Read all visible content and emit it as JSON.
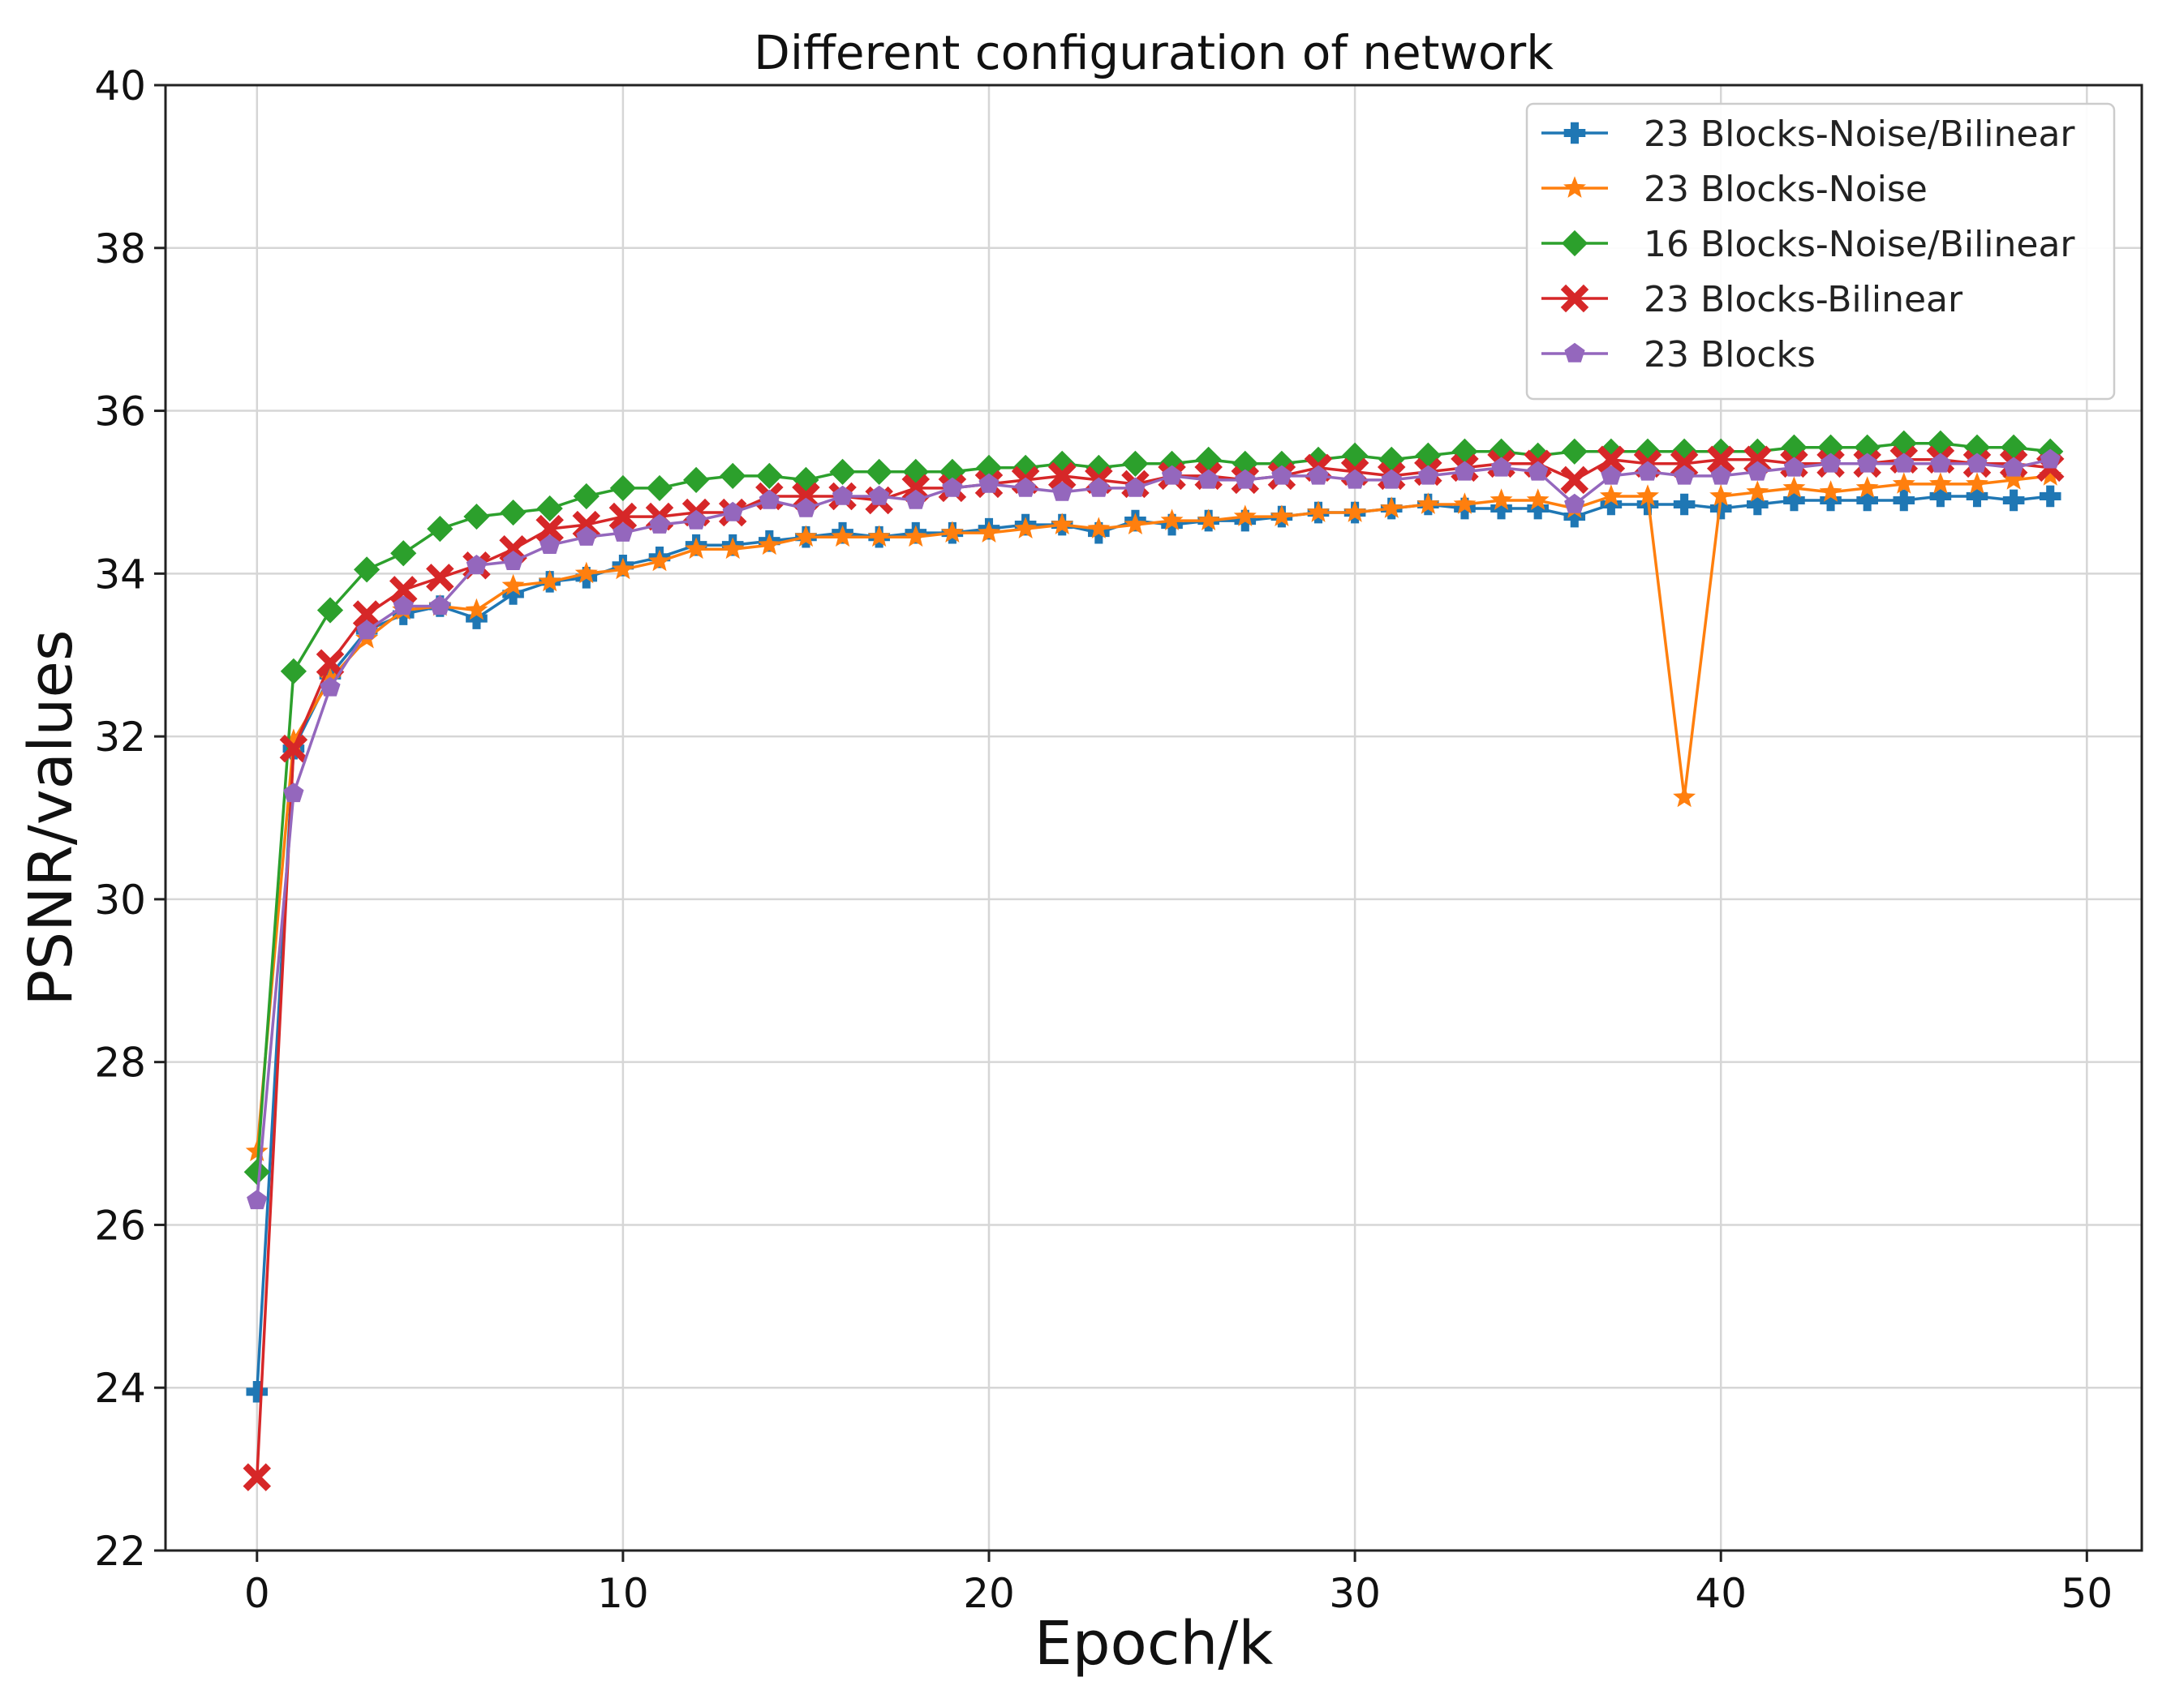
{
  "chart_data": {
    "type": "line",
    "title": "Different configuration of network",
    "xlabel": "Epoch/k",
    "ylabel": "PSNR/values",
    "xlim": [
      -2.5,
      51.5
    ],
    "ylim": [
      22,
      40
    ],
    "xticks": [
      0,
      10,
      20,
      30,
      40,
      50
    ],
    "yticks": [
      22,
      24,
      26,
      28,
      30,
      32,
      34,
      36,
      38,
      40
    ],
    "grid": true,
    "legend_position": "top-right",
    "x": [
      0,
      1,
      2,
      3,
      4,
      5,
      6,
      7,
      8,
      9,
      10,
      11,
      12,
      13,
      14,
      15,
      16,
      17,
      18,
      19,
      20,
      21,
      22,
      23,
      24,
      25,
      26,
      27,
      28,
      29,
      30,
      31,
      32,
      33,
      34,
      35,
      36,
      37,
      38,
      39,
      40,
      41,
      42,
      43,
      44,
      45,
      46,
      47,
      48,
      49
    ],
    "series": [
      {
        "name": "23 Blocks-Noise/Bilinear",
        "color": "#1f77b4",
        "marker": "plus",
        "values": [
          23.95,
          31.85,
          32.75,
          33.3,
          33.5,
          33.6,
          33.45,
          33.75,
          33.9,
          33.95,
          34.1,
          34.2,
          34.35,
          34.35,
          34.4,
          34.45,
          34.5,
          34.45,
          34.5,
          34.5,
          34.55,
          34.6,
          34.6,
          34.5,
          34.65,
          34.6,
          34.65,
          34.65,
          34.7,
          34.75,
          34.75,
          34.8,
          34.85,
          34.8,
          34.8,
          34.8,
          34.7,
          34.85,
          34.85,
          34.85,
          34.8,
          34.85,
          34.9,
          34.9,
          34.9,
          34.9,
          34.95,
          34.95,
          34.9,
          34.95
        ]
      },
      {
        "name": "23 Blocks-Noise",
        "color": "#ff7f0e",
        "marker": "star",
        "values": [
          26.9,
          31.95,
          32.7,
          33.2,
          33.55,
          33.6,
          33.55,
          33.85,
          33.9,
          34.0,
          34.05,
          34.15,
          34.3,
          34.3,
          34.35,
          34.45,
          34.45,
          34.45,
          34.45,
          34.5,
          34.5,
          34.55,
          34.6,
          34.55,
          34.6,
          34.65,
          34.65,
          34.7,
          34.7,
          34.75,
          34.75,
          34.8,
          34.85,
          34.85,
          34.9,
          34.9,
          34.8,
          34.95,
          34.95,
          31.25,
          34.95,
          35.0,
          35.05,
          35.0,
          35.05,
          35.1,
          35.1,
          35.1,
          35.15,
          35.2
        ]
      },
      {
        "name": "16 Blocks-Noise/Bilinear",
        "color": "#2ca02c",
        "marker": "diamond",
        "values": [
          26.65,
          32.8,
          33.55,
          34.05,
          34.25,
          34.55,
          34.7,
          34.75,
          34.8,
          34.95,
          35.05,
          35.05,
          35.15,
          35.2,
          35.2,
          35.15,
          35.25,
          35.25,
          35.25,
          35.25,
          35.3,
          35.3,
          35.35,
          35.3,
          35.35,
          35.35,
          35.4,
          35.35,
          35.35,
          35.4,
          35.45,
          35.4,
          35.45,
          35.5,
          35.5,
          35.45,
          35.5,
          35.5,
          35.5,
          35.5,
          35.5,
          35.5,
          35.55,
          35.55,
          35.55,
          35.6,
          35.6,
          35.55,
          35.55,
          35.5
        ]
      },
      {
        "name": "23 Blocks-Bilinear",
        "color": "#d62728",
        "marker": "x",
        "values": [
          22.9,
          31.85,
          32.9,
          33.5,
          33.8,
          33.95,
          34.1,
          34.3,
          34.55,
          34.6,
          34.7,
          34.7,
          34.75,
          34.75,
          34.95,
          34.95,
          34.95,
          34.9,
          35.05,
          35.05,
          35.1,
          35.15,
          35.2,
          35.15,
          35.1,
          35.2,
          35.2,
          35.15,
          35.2,
          35.3,
          35.25,
          35.2,
          35.25,
          35.3,
          35.35,
          35.35,
          35.15,
          35.4,
          35.35,
          35.35,
          35.4,
          35.4,
          35.35,
          35.35,
          35.35,
          35.4,
          35.4,
          35.35,
          35.35,
          35.3
        ]
      },
      {
        "name": "23 Blocks",
        "color": "#9467bd",
        "marker": "pentagon",
        "values": [
          26.3,
          31.3,
          32.6,
          33.3,
          33.6,
          33.6,
          34.1,
          34.15,
          34.35,
          34.45,
          34.5,
          34.6,
          34.65,
          34.75,
          34.9,
          34.8,
          34.95,
          34.95,
          34.9,
          35.05,
          35.1,
          35.05,
          35.0,
          35.05,
          35.05,
          35.2,
          35.15,
          35.15,
          35.2,
          35.2,
          35.15,
          35.15,
          35.2,
          35.25,
          35.3,
          35.25,
          34.85,
          35.2,
          35.25,
          35.2,
          35.2,
          35.25,
          35.3,
          35.35,
          35.35,
          35.35,
          35.35,
          35.35,
          35.3,
          35.4
        ]
      }
    ]
  }
}
